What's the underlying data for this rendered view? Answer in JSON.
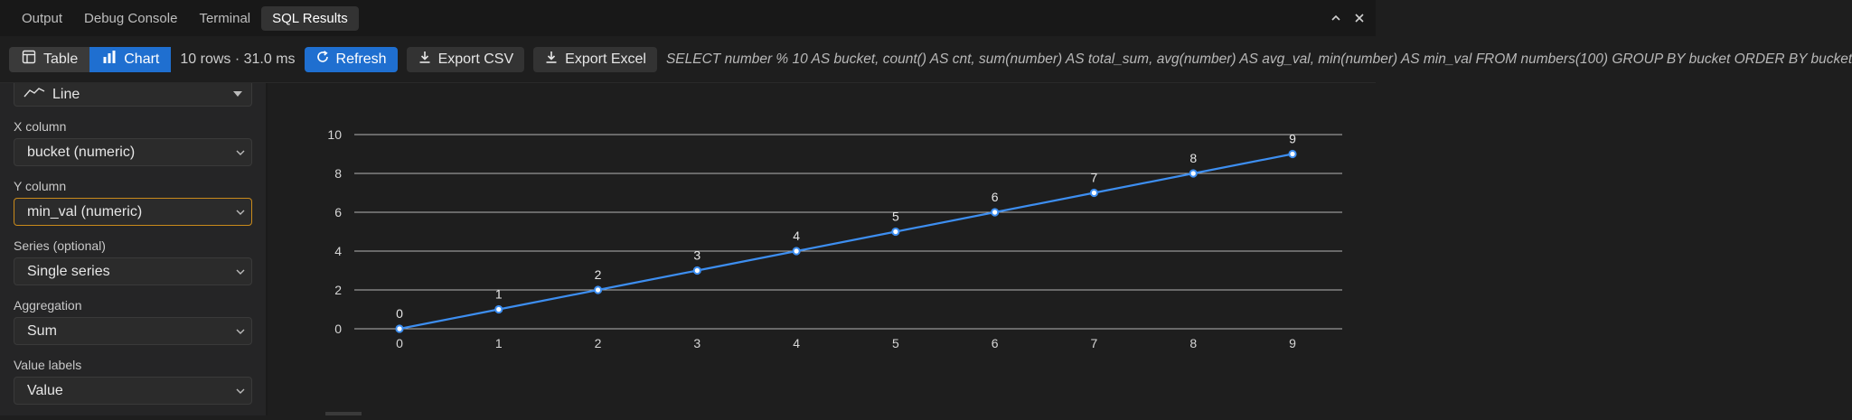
{
  "panel_tabs": [
    {
      "label": "Output",
      "active": false
    },
    {
      "label": "Debug Console",
      "active": false
    },
    {
      "label": "Terminal",
      "active": false
    },
    {
      "label": "SQL Results",
      "active": true
    }
  ],
  "panel_actions": {
    "maximize_icon": "chevron-up-icon",
    "close_icon": "close-icon"
  },
  "toolbar": {
    "view_table_label": "Table",
    "view_chart_label": "Chart",
    "active_view": "Chart",
    "result_meta": "10 rows · 31.0 ms",
    "refresh_label": "Refresh",
    "export_csv_label": "Export CSV",
    "export_excel_label": "Export Excel",
    "sql_text": "SELECT number % 10 AS bucket, count() AS cnt, sum(number) AS total_sum, avg(number) AS avg_val, min(number) AS min_val FROM numbers(100) GROUP BY bucket ORDER BY bucket"
  },
  "settings": {
    "chart_type": "Line",
    "x_column_label": "X column",
    "x_column_value": "bucket (numeric)",
    "y_column_label": "Y column",
    "y_column_value": "min_val (numeric)",
    "series_label": "Series (optional)",
    "series_value": "Single series",
    "aggregation_label": "Aggregation",
    "aggregation_value": "Sum",
    "value_labels_label": "Value labels",
    "value_labels_value": "Value"
  },
  "colors": {
    "accent": "#1f6fd0",
    "line": "#3d8ef0",
    "focus_border": "#c98a1b",
    "grid": "#cfcfcf"
  },
  "chart_data": {
    "type": "line",
    "x": [
      0,
      1,
      2,
      3,
      4,
      5,
      6,
      7,
      8,
      9
    ],
    "series": [
      {
        "values": [
          0,
          1,
          2,
          3,
          4,
          5,
          6,
          7,
          8,
          9
        ]
      }
    ],
    "x_ticks": [
      "0",
      "1",
      "2",
      "3",
      "4",
      "5",
      "6",
      "7",
      "8",
      "9"
    ],
    "y_ticks": [
      "0",
      "2",
      "4",
      "6",
      "8",
      "10"
    ],
    "ylim": [
      0,
      10
    ],
    "grid": true,
    "value_labels": true,
    "legend": "none"
  }
}
